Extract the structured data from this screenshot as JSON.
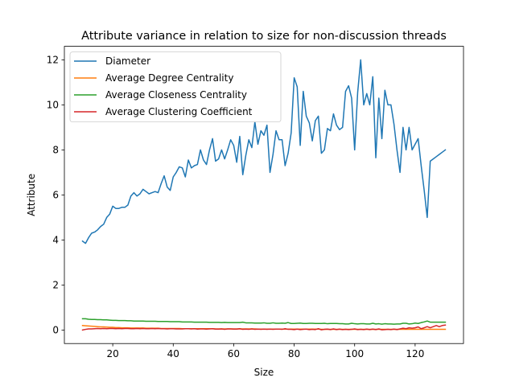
{
  "chart_data": {
    "type": "line",
    "title": "Attribute variance in relation to size for non-discussion threads",
    "xlabel": "Size",
    "ylabel": "Attribute",
    "xlim": [
      4,
      136
    ],
    "ylim": [
      -0.6,
      12.6
    ],
    "xticks": [
      20,
      40,
      60,
      80,
      100,
      120
    ],
    "yticks": [
      0,
      2,
      4,
      6,
      8,
      10,
      12
    ],
    "grid": false,
    "legend_position": "upper left",
    "x": [
      10,
      11,
      12,
      13,
      14,
      15,
      16,
      17,
      18,
      19,
      20,
      21,
      22,
      23,
      24,
      25,
      26,
      27,
      28,
      29,
      30,
      31,
      32,
      33,
      34,
      35,
      36,
      37,
      38,
      39,
      40,
      41,
      42,
      43,
      44,
      45,
      46,
      47,
      48,
      49,
      50,
      51,
      52,
      53,
      54,
      55,
      56,
      57,
      58,
      59,
      60,
      61,
      62,
      63,
      64,
      65,
      66,
      67,
      68,
      69,
      70,
      71,
      72,
      73,
      74,
      75,
      76,
      77,
      78,
      79,
      80,
      81,
      82,
      83,
      84,
      85,
      86,
      87,
      88,
      89,
      90,
      91,
      92,
      93,
      94,
      95,
      96,
      97,
      98,
      99,
      100,
      101,
      102,
      103,
      104,
      105,
      106,
      107,
      108,
      109,
      110,
      111,
      112,
      113,
      114,
      115,
      116,
      117,
      118,
      119,
      120,
      121,
      122,
      123,
      124,
      125,
      126,
      127,
      128,
      129,
      130
    ],
    "series": [
      {
        "name": "Diameter",
        "color": "#1f77b4",
        "values": [
          3.95,
          3.85,
          4.1,
          4.3,
          4.35,
          4.45,
          4.6,
          4.7,
          5.0,
          5.15,
          5.5,
          5.4,
          5.4,
          5.45,
          5.45,
          5.55,
          5.95,
          6.1,
          5.95,
          6.05,
          6.25,
          6.15,
          6.05,
          6.1,
          6.15,
          6.1,
          6.5,
          6.85,
          6.35,
          6.2,
          6.8,
          7.0,
          7.25,
          7.2,
          6.8,
          7.55,
          7.2,
          7.3,
          7.35,
          8.0,
          7.55,
          7.35,
          8.0,
          8.5,
          7.5,
          7.6,
          8.0,
          7.6,
          8.0,
          8.45,
          8.2,
          7.45,
          8.6,
          6.9,
          7.75,
          8.45,
          8.1,
          9.25,
          8.25,
          8.85,
          8.65,
          9.1,
          7.0,
          7.8,
          8.85,
          8.45,
          8.45,
          7.3,
          7.85,
          8.75,
          11.2,
          10.8,
          8.2,
          10.6,
          9.5,
          9.2,
          8.4,
          9.3,
          9.5,
          7.85,
          8.0,
          8.95,
          8.85,
          9.6,
          9.1,
          8.9,
          9.0,
          10.6,
          10.85,
          10.3,
          8.0,
          10.55,
          12.0,
          10.0,
          10.5,
          10.0,
          11.25,
          7.65,
          10.3,
          8.5,
          10.65,
          10.0,
          10.0,
          9.15,
          8.0,
          7.0,
          9.0,
          8.0,
          9.0,
          8.0,
          8.25,
          8.5,
          7.3,
          6.2,
          5.0,
          7.5,
          7.6,
          7.7,
          7.8,
          7.9,
          8.0
        ]
      },
      {
        "name": "Average Degree Centrality",
        "color": "#ff7f0e",
        "values": [
          0.2,
          0.19,
          0.18,
          0.17,
          0.16,
          0.15,
          0.14,
          0.14,
          0.13,
          0.12,
          0.12,
          0.11,
          0.11,
          0.1,
          0.1,
          0.1,
          0.09,
          0.09,
          0.09,
          0.09,
          0.09,
          0.08,
          0.08,
          0.08,
          0.08,
          0.08,
          0.07,
          0.07,
          0.07,
          0.07,
          0.07,
          0.07,
          0.07,
          0.06,
          0.06,
          0.06,
          0.06,
          0.06,
          0.06,
          0.06,
          0.06,
          0.06,
          0.06,
          0.06,
          0.05,
          0.05,
          0.05,
          0.05,
          0.05,
          0.05,
          0.05,
          0.05,
          0.05,
          0.05,
          0.05,
          0.05,
          0.05,
          0.05,
          0.04,
          0.04,
          0.04,
          0.04,
          0.04,
          0.04,
          0.04,
          0.04,
          0.04,
          0.04,
          0.04,
          0.04,
          0.04,
          0.04,
          0.04,
          0.04,
          0.04,
          0.04,
          0.04,
          0.04,
          0.04,
          0.03,
          0.03,
          0.03,
          0.03,
          0.03,
          0.03,
          0.03,
          0.03,
          0.03,
          0.03,
          0.03,
          0.03,
          0.03,
          0.03,
          0.03,
          0.03,
          0.03,
          0.03,
          0.03,
          0.03,
          0.03,
          0.03,
          0.03,
          0.03,
          0.03,
          0.03,
          0.03,
          0.03,
          0.03,
          0.03,
          0.03,
          0.03,
          0.03,
          0.03,
          0.03,
          0.03,
          0.03,
          0.03,
          0.03,
          0.03,
          0.03,
          0.03
        ]
      },
      {
        "name": "Average Closeness Centrality",
        "color": "#2ca02c",
        "values": [
          0.5,
          0.5,
          0.48,
          0.47,
          0.47,
          0.46,
          0.46,
          0.45,
          0.45,
          0.44,
          0.43,
          0.43,
          0.42,
          0.42,
          0.42,
          0.41,
          0.41,
          0.4,
          0.4,
          0.4,
          0.4,
          0.39,
          0.39,
          0.39,
          0.39,
          0.38,
          0.38,
          0.38,
          0.38,
          0.37,
          0.37,
          0.37,
          0.37,
          0.36,
          0.36,
          0.36,
          0.36,
          0.35,
          0.35,
          0.35,
          0.35,
          0.35,
          0.34,
          0.34,
          0.34,
          0.34,
          0.33,
          0.34,
          0.33,
          0.33,
          0.33,
          0.33,
          0.33,
          0.35,
          0.32,
          0.32,
          0.32,
          0.31,
          0.31,
          0.31,
          0.32,
          0.3,
          0.3,
          0.32,
          0.3,
          0.3,
          0.31,
          0.3,
          0.33,
          0.29,
          0.29,
          0.3,
          0.31,
          0.29,
          0.29,
          0.3,
          0.3,
          0.29,
          0.29,
          0.29,
          0.3,
          0.28,
          0.29,
          0.29,
          0.29,
          0.28,
          0.28,
          0.27,
          0.27,
          0.3,
          0.28,
          0.27,
          0.28,
          0.28,
          0.27,
          0.27,
          0.3,
          0.27,
          0.28,
          0.26,
          0.28,
          0.27,
          0.27,
          0.26,
          0.27,
          0.27,
          0.3,
          0.3,
          0.27,
          0.28,
          0.31,
          0.29,
          0.33,
          0.36,
          0.4,
          0.35,
          0.35,
          0.35,
          0.35,
          0.35,
          0.35
        ]
      },
      {
        "name": "Average Clustering Coefficient",
        "color": "#d62728",
        "values": [
          0.0,
          0.03,
          0.05,
          0.05,
          0.06,
          0.07,
          0.06,
          0.07,
          0.06,
          0.07,
          0.07,
          0.06,
          0.07,
          0.06,
          0.07,
          0.07,
          0.06,
          0.06,
          0.07,
          0.06,
          0.07,
          0.06,
          0.06,
          0.07,
          0.06,
          0.07,
          0.06,
          0.06,
          0.05,
          0.06,
          0.06,
          0.05,
          0.05,
          0.05,
          0.06,
          0.06,
          0.05,
          0.06,
          0.04,
          0.05,
          0.05,
          0.04,
          0.05,
          0.06,
          0.04,
          0.04,
          0.05,
          0.03,
          0.05,
          0.05,
          0.04,
          0.04,
          0.06,
          0.03,
          0.04,
          0.03,
          0.05,
          0.03,
          0.04,
          0.03,
          0.04,
          0.03,
          0.04,
          0.03,
          0.04,
          0.04,
          0.03,
          0.06,
          0.03,
          0.03,
          0.02,
          0.04,
          0.02,
          0.03,
          0.04,
          0.02,
          0.03,
          0.02,
          0.06,
          0.01,
          0.03,
          0.04,
          0.02,
          0.05,
          0.02,
          0.04,
          0.02,
          0.03,
          0.02,
          0.03,
          0.05,
          0.02,
          0.03,
          0.02,
          0.04,
          0.02,
          0.04,
          0.02,
          0.05,
          0.01,
          0.02,
          0.03,
          0.02,
          0.04,
          0.02,
          0.05,
          0.08,
          0.06,
          0.1,
          0.08,
          0.1,
          0.14,
          0.06,
          0.1,
          0.15,
          0.1,
          0.15,
          0.2,
          0.15,
          0.2,
          0.22
        ]
      }
    ]
  }
}
